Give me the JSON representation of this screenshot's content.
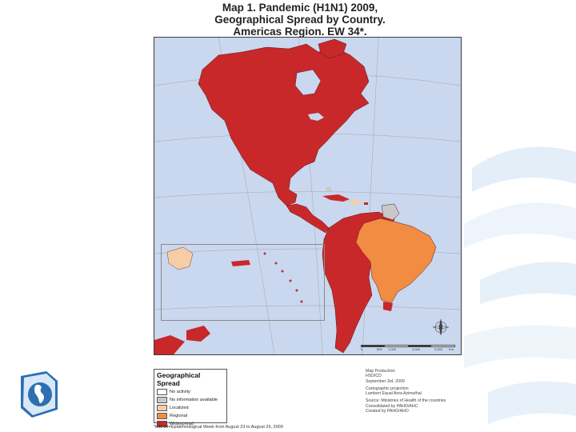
{
  "title": {
    "line1": "Map 1. Pandemic (H1N1) 2009,",
    "line2": "Geographical Spread by Country.",
    "line3": "Americas Region. EW 34*."
  },
  "map": {
    "background": "#c9d7ef",
    "colors": {
      "widespread": "#c8282a",
      "regional": "#f28c43",
      "localized": "#f7cda8",
      "no_information": "#c8c8c8",
      "no_activity": "#ffffff",
      "graticule": "#a7a7a7"
    },
    "scale_labels": [
      "0",
      "500",
      "1,000",
      "2,000",
      "3,000"
    ],
    "scale_unit": "Km"
  },
  "legend": {
    "title": "Geographical Spread",
    "items": [
      {
        "label": "No activity",
        "color": "#ffffff"
      },
      {
        "label": "No information available",
        "color": "#c8c8c8"
      },
      {
        "label": "Localized",
        "color": "#f7cda8"
      },
      {
        "label": "Regional",
        "color": "#f28c43"
      },
      {
        "label": "Widespread",
        "color": "#c8282a"
      }
    ]
  },
  "credits": {
    "map_production_label": "Map Production:",
    "map_production_org": "HSD/CD",
    "map_production_date": "September 3rd, 2009",
    "projection_label": "Cartographic projection",
    "projection_name": "Lambert Equal Area Azimuthal",
    "source": "Source: Ministries of Health of the countries",
    "consolidated": "Consolidated by PAHO/AHC",
    "created": "Created by PAHO/AHO"
  },
  "footnote": "*EW 34=Epidemiological Week from August 23 to August 29, 2009"
}
